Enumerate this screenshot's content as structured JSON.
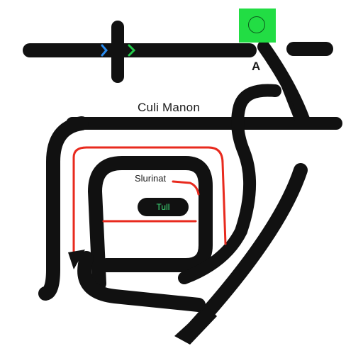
{
  "map": {
    "main_label": "Culi Manon",
    "inner_label": "Slurinat",
    "marker_label": "A",
    "badge_label": "Tull"
  },
  "colors": {
    "track": "#111111",
    "highlight_route": "#e82a1e",
    "station_node": "#22dd44",
    "badge_text": "#3fe07a",
    "arrow_blue": "#2a8cf0",
    "arrow_green": "#22c94a"
  },
  "icons": [
    "station-node-icon",
    "direction-arrow-icon",
    "end-arrow-icon"
  ]
}
